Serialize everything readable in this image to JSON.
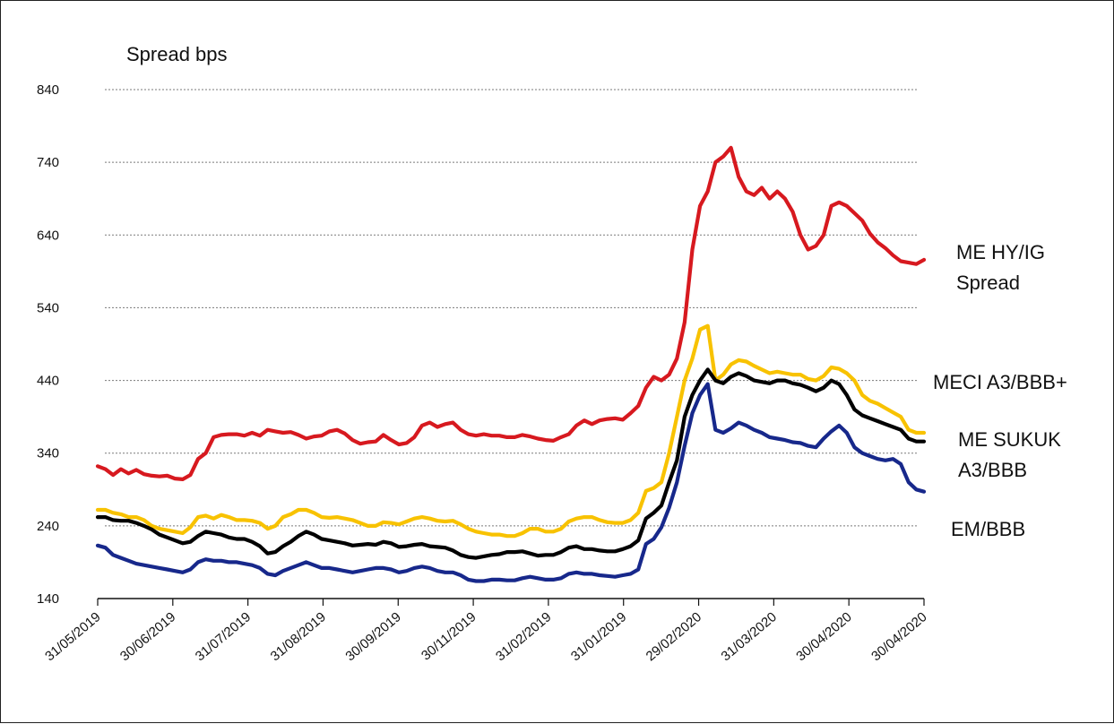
{
  "chart_data": {
    "type": "line",
    "title": "",
    "ylabel": "Spread bps",
    "xlabel": "",
    "ylim": [
      140,
      840
    ],
    "yticks": [
      140,
      240,
      340,
      440,
      540,
      640,
      740,
      840
    ],
    "grid": "horizontal dotted",
    "x_tick_labels": [
      "31/05/2019",
      "30/06/2019",
      "31/07/2019",
      "31/08/2019",
      "30/09/2019",
      "30/11/2019",
      "31/02/2019",
      "31/01/2019",
      "29/02/2020",
      "31/03/2020",
      "30/04/2020",
      "30/04/2020"
    ],
    "series": [
      {
        "name": "ME HY/IG Spread",
        "label_lines": [
          "ME HY/IG",
          "Spread"
        ],
        "color": "#d7191f",
        "values": [
          322,
          318,
          310,
          318,
          312,
          317,
          311,
          309,
          308,
          309,
          305,
          304,
          310,
          332,
          340,
          362,
          365,
          366,
          366,
          364,
          368,
          364,
          372,
          370,
          368,
          369,
          365,
          360,
          363,
          364,
          370,
          372,
          367,
          358,
          353,
          355,
          356,
          365,
          358,
          352,
          354,
          362,
          378,
          382,
          376,
          380,
          382,
          372,
          366,
          364,
          366,
          364,
          364,
          362,
          362,
          365,
          363,
          360,
          358,
          357,
          362,
          366,
          378,
          385,
          380,
          385,
          387,
          388,
          386,
          395,
          405,
          430,
          445,
          440,
          448,
          470,
          520,
          620,
          680,
          700,
          740,
          748,
          760,
          720,
          700,
          695,
          705,
          690,
          700,
          690,
          672,
          640,
          620,
          625,
          640,
          680,
          685,
          680,
          670,
          660,
          642,
          630,
          622,
          612,
          604,
          602,
          600,
          606
        ]
      },
      {
        "name": "MECI A3/BBB+",
        "label_lines": [
          "MECI A3/BBB+"
        ],
        "color": "#f8c200",
        "values": [
          262,
          262,
          258,
          256,
          252,
          252,
          248,
          240,
          236,
          234,
          232,
          230,
          238,
          252,
          254,
          250,
          255,
          252,
          248,
          248,
          247,
          244,
          236,
          240,
          252,
          256,
          262,
          262,
          258,
          252,
          251,
          252,
          250,
          248,
          244,
          240,
          240,
          245,
          244,
          242,
          246,
          250,
          252,
          250,
          247,
          246,
          247,
          242,
          236,
          232,
          230,
          228,
          228,
          226,
          226,
          230,
          236,
          236,
          232,
          232,
          236,
          246,
          250,
          252,
          252,
          248,
          245,
          244,
          244,
          248,
          258,
          288,
          292,
          300,
          340,
          390,
          440,
          470,
          510,
          515,
          440,
          448,
          462,
          468,
          466,
          460,
          455,
          450,
          452,
          450,
          448,
          448,
          442,
          440,
          446,
          458,
          456,
          450,
          440,
          420,
          412,
          408,
          402,
          396,
          390,
          372,
          368,
          368
        ]
      },
      {
        "name": "ME SUKUK A3/BBB",
        "label_lines": [
          "ME SUKUK",
          "A3/BBB"
        ],
        "color": "#000000",
        "values": [
          252,
          252,
          248,
          247,
          247,
          244,
          240,
          235,
          228,
          224,
          220,
          216,
          218,
          226,
          232,
          230,
          228,
          224,
          222,
          222,
          218,
          212,
          202,
          204,
          212,
          218,
          226,
          232,
          228,
          222,
          220,
          218,
          216,
          213,
          214,
          215,
          214,
          218,
          216,
          211,
          212,
          214,
          215,
          212,
          211,
          210,
          206,
          200,
          197,
          196,
          198,
          200,
          201,
          204,
          204,
          205,
          202,
          199,
          200,
          200,
          204,
          210,
          212,
          208,
          208,
          206,
          205,
          205,
          208,
          212,
          220,
          250,
          258,
          268,
          300,
          330,
          390,
          420,
          440,
          455,
          440,
          436,
          445,
          450,
          446,
          440,
          438,
          436,
          440,
          440,
          436,
          434,
          430,
          425,
          430,
          440,
          435,
          420,
          400,
          392,
          388,
          384,
          380,
          376,
          372,
          360,
          356,
          356
        ]
      },
      {
        "name": "EM/BBB",
        "label_lines": [
          "EM/BBB"
        ],
        "color": "#17288b",
        "values": [
          213,
          210,
          200,
          196,
          192,
          188,
          186,
          184,
          182,
          180,
          178,
          176,
          180,
          190,
          194,
          192,
          192,
          190,
          190,
          188,
          186,
          182,
          174,
          172,
          178,
          182,
          186,
          190,
          186,
          182,
          182,
          180,
          178,
          176,
          178,
          180,
          182,
          182,
          180,
          176,
          178,
          182,
          184,
          182,
          178,
          176,
          176,
          172,
          166,
          164,
          164,
          166,
          166,
          165,
          165,
          168,
          170,
          168,
          166,
          166,
          168,
          174,
          176,
          174,
          174,
          172,
          171,
          170,
          172,
          174,
          180,
          215,
          222,
          238,
          265,
          300,
          350,
          395,
          420,
          435,
          372,
          368,
          374,
          382,
          378,
          372,
          368,
          362,
          360,
          358,
          355,
          354,
          350,
          348,
          360,
          370,
          378,
          368,
          348,
          340,
          336,
          332,
          330,
          332,
          325,
          300,
          290,
          287
        ]
      }
    ]
  }
}
